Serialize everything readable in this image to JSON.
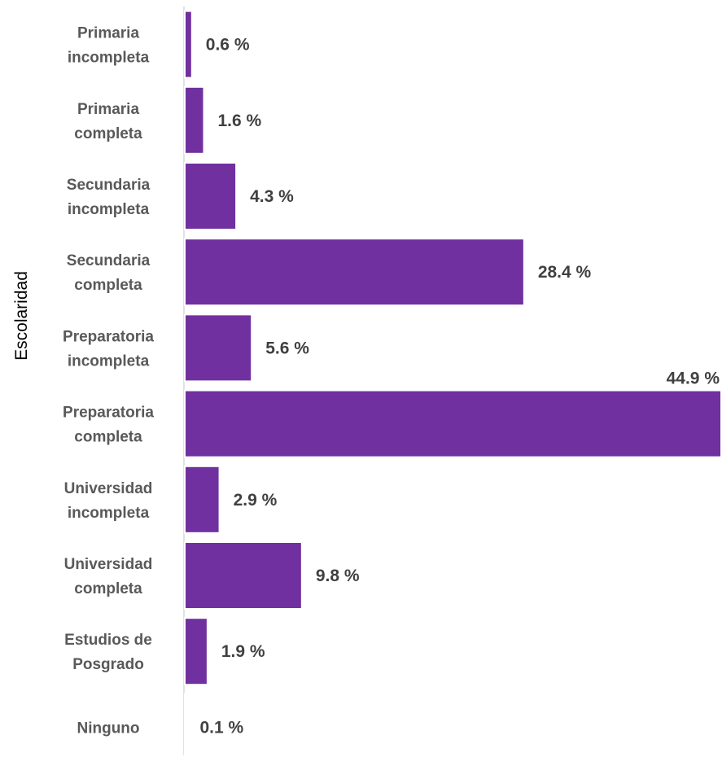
{
  "chart_data": {
    "type": "bar",
    "orientation": "horizontal",
    "ylabel": "Escolaridad",
    "xlabel": "",
    "title": "",
    "xlim": [
      0,
      44.9
    ],
    "grid": false,
    "legend": "none",
    "bar_color": "#7030A0",
    "categories": [
      [
        "Primaria",
        "incompleta"
      ],
      [
        "Primaria",
        "completa"
      ],
      [
        "Secundaria",
        "incompleta"
      ],
      [
        "Secundaria",
        "completa"
      ],
      [
        "Preparatoria",
        "incompleta"
      ],
      [
        "Preparatoria",
        "completa"
      ],
      [
        "Universidad",
        "incompleta"
      ],
      [
        "Universidad",
        "completa"
      ],
      [
        "Estudios de",
        "Posgrado"
      ],
      [
        "Ninguno"
      ]
    ],
    "values": [
      0.6,
      1.6,
      4.3,
      28.4,
      5.6,
      44.9,
      2.9,
      9.8,
      1.9,
      0.1
    ],
    "data_labels": [
      "0.6 %",
      "1.6 %",
      "4.3 %",
      "28.4 %",
      "5.6 %",
      "44.9  %",
      "2.9 %",
      "9.8 %",
      "1.9 %",
      "0.1 %"
    ]
  }
}
